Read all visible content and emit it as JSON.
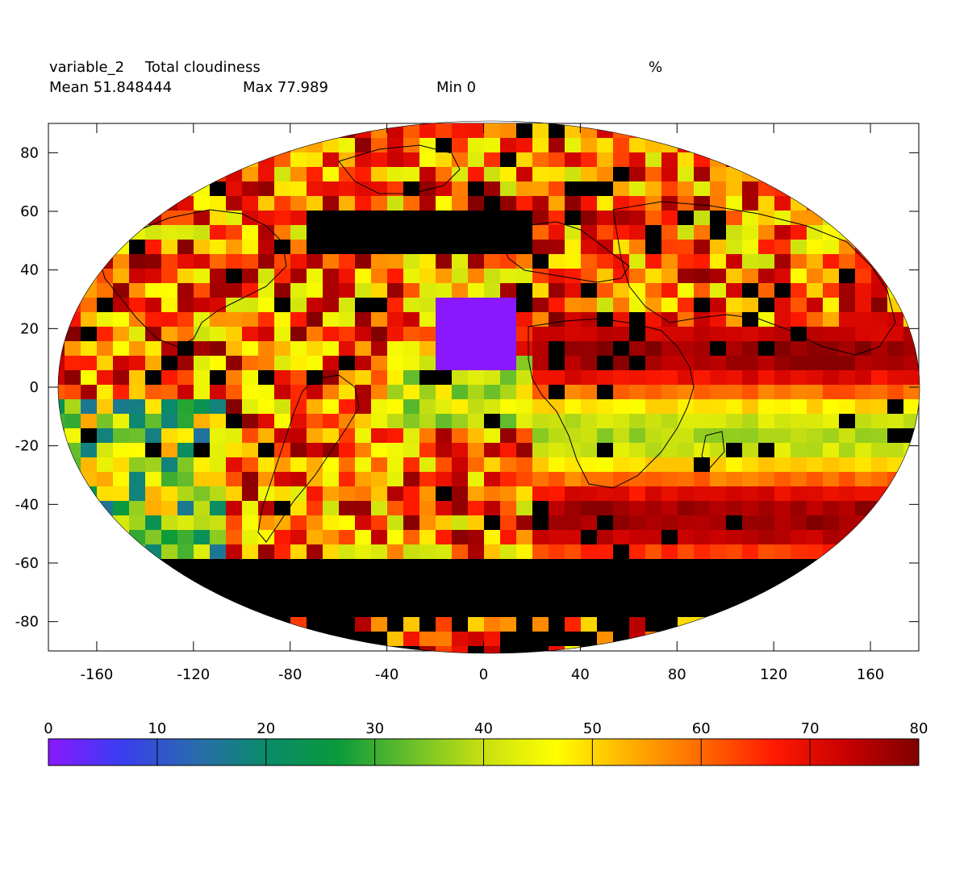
{
  "header": {
    "variable_name": "variable_2",
    "variable_long_name": "Total cloudiness",
    "units": "%",
    "mean_text": "Mean 51.848444",
    "max_text": "Max 77.989",
    "min_text": "Min 0"
  },
  "axes": {
    "x_ticks": [
      -160,
      -120,
      -80,
      -40,
      0,
      40,
      80,
      120,
      160
    ],
    "y_ticks": [
      80,
      60,
      40,
      20,
      0,
      -20,
      -40,
      -60,
      -80
    ],
    "x_range": [
      -180,
      180
    ],
    "y_range": [
      -90,
      90
    ]
  },
  "colorbar": {
    "ticks": [
      0,
      10,
      20,
      30,
      40,
      50,
      60,
      70,
      80
    ],
    "range": [
      0,
      80
    ],
    "colors": [
      "#8a18ff",
      "#3a3cf0",
      "#2a6ab0",
      "#0a8a6a",
      "#0a9a3a",
      "#6abf2a",
      "#c8e010",
      "#ffff00",
      "#ffb000",
      "#ff6a00",
      "#ff1a00",
      "#c80000",
      "#800000"
    ]
  },
  "chart_data": {
    "type": "heatmap",
    "projection": "hammer-aitoff (world map)",
    "title": "variable_2 Total cloudiness",
    "units": "%",
    "statistics": {
      "mean": 51.848444,
      "max": 77.989,
      "min": 0
    },
    "x_label": "",
    "y_label": "",
    "x_range": [
      -180,
      180
    ],
    "y_range": [
      -90,
      90
    ],
    "grid": false,
    "missing_value_color": "#000000",
    "color_range": [
      0,
      80
    ],
    "features": [
      {
        "region": "Atlantic off West Africa (lon -20..10, lat 10..30)",
        "value": 0
      },
      {
        "region": "Southern Ocean band (lat -55..-75)",
        "value": "missing"
      },
      {
        "region": "North Atlantic / Eurasia gap (lat 50..60)",
        "value": "missing"
      }
    ]
  }
}
